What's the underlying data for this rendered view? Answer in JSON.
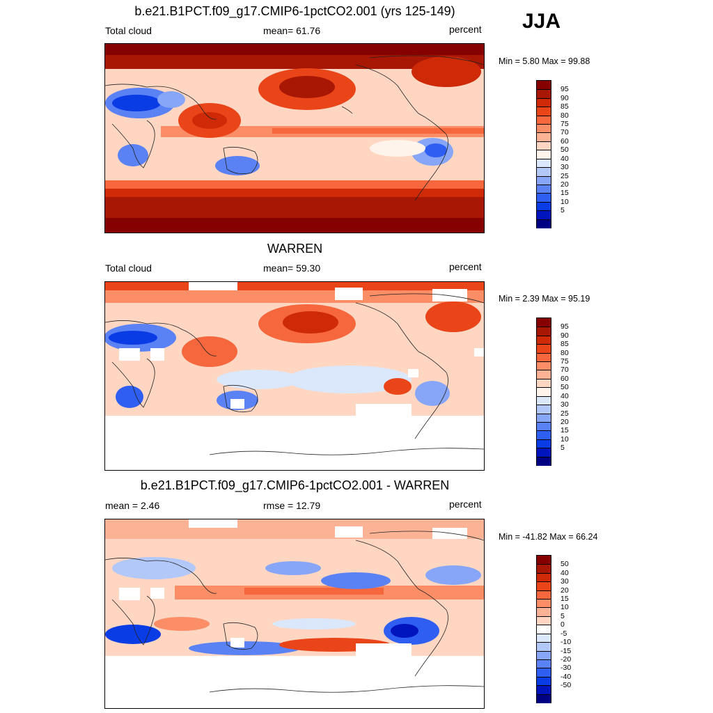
{
  "season": "JJA",
  "palettes": {
    "abs": [
      "#000083",
      "#0014be",
      "#0a3ce6",
      "#2e5ef2",
      "#5a82f5",
      "#87a6f7",
      "#b2c8f9",
      "#dbe7fb",
      "#fff4ec",
      "#fed6c2",
      "#fcb294",
      "#fb8d67",
      "#f6673e",
      "#ea4419",
      "#cf2a08",
      "#a81604",
      "#870000"
    ],
    "diff": [
      "#000083",
      "#0014be",
      "#0a3ce6",
      "#2e5ef2",
      "#5a82f5",
      "#87a6f7",
      "#b2c8f9",
      "#dbe7fb",
      "#ffffff",
      "#fed6c2",
      "#fcb294",
      "#fb8d67",
      "#f6673e",
      "#ea4419",
      "#cf2a08",
      "#a81604",
      "#870000"
    ]
  },
  "panels": [
    {
      "id": "model",
      "title": "b.e21.B1PCT.f09_g17.CMIP6-1pctCO2.001 (yrs 125-149)",
      "left_label": "Total cloud",
      "center_label": "mean=  61.76",
      "right_label": "percent",
      "minmax": "Min =   5.80 Max =  99.88",
      "palette": "abs",
      "colorbar_levels": [
        "95",
        "90",
        "85",
        "80",
        "75",
        "70",
        "60",
        "50",
        "40",
        "30",
        "25",
        "20",
        "15",
        "10",
        "5"
      ]
    },
    {
      "id": "obs",
      "title": "WARREN",
      "left_label": "Total cloud",
      "center_label": "mean=  59.30",
      "right_label": "percent",
      "minmax": "Min =   2.39 Max =  95.19",
      "palette": "abs",
      "colorbar_levels": [
        "95",
        "90",
        "85",
        "80",
        "75",
        "70",
        "60",
        "50",
        "40",
        "30",
        "25",
        "20",
        "15",
        "10",
        "5"
      ]
    },
    {
      "id": "diff",
      "title": "b.e21.B1PCT.f09_g17.CMIP6-1pctCO2.001 - WARREN",
      "left_label": "mean =   2.46",
      "center_label": "rmse =  12.79",
      "right_label": "percent",
      "minmax": "Min = -41.82 Max =  66.24",
      "palette": "diff",
      "colorbar_levels": [
        "50",
        "40",
        "30",
        "20",
        "15",
        "10",
        "5",
        "0",
        "-5",
        "-10",
        "-15",
        "-20",
        "-30",
        "-40",
        "-50"
      ]
    }
  ]
}
